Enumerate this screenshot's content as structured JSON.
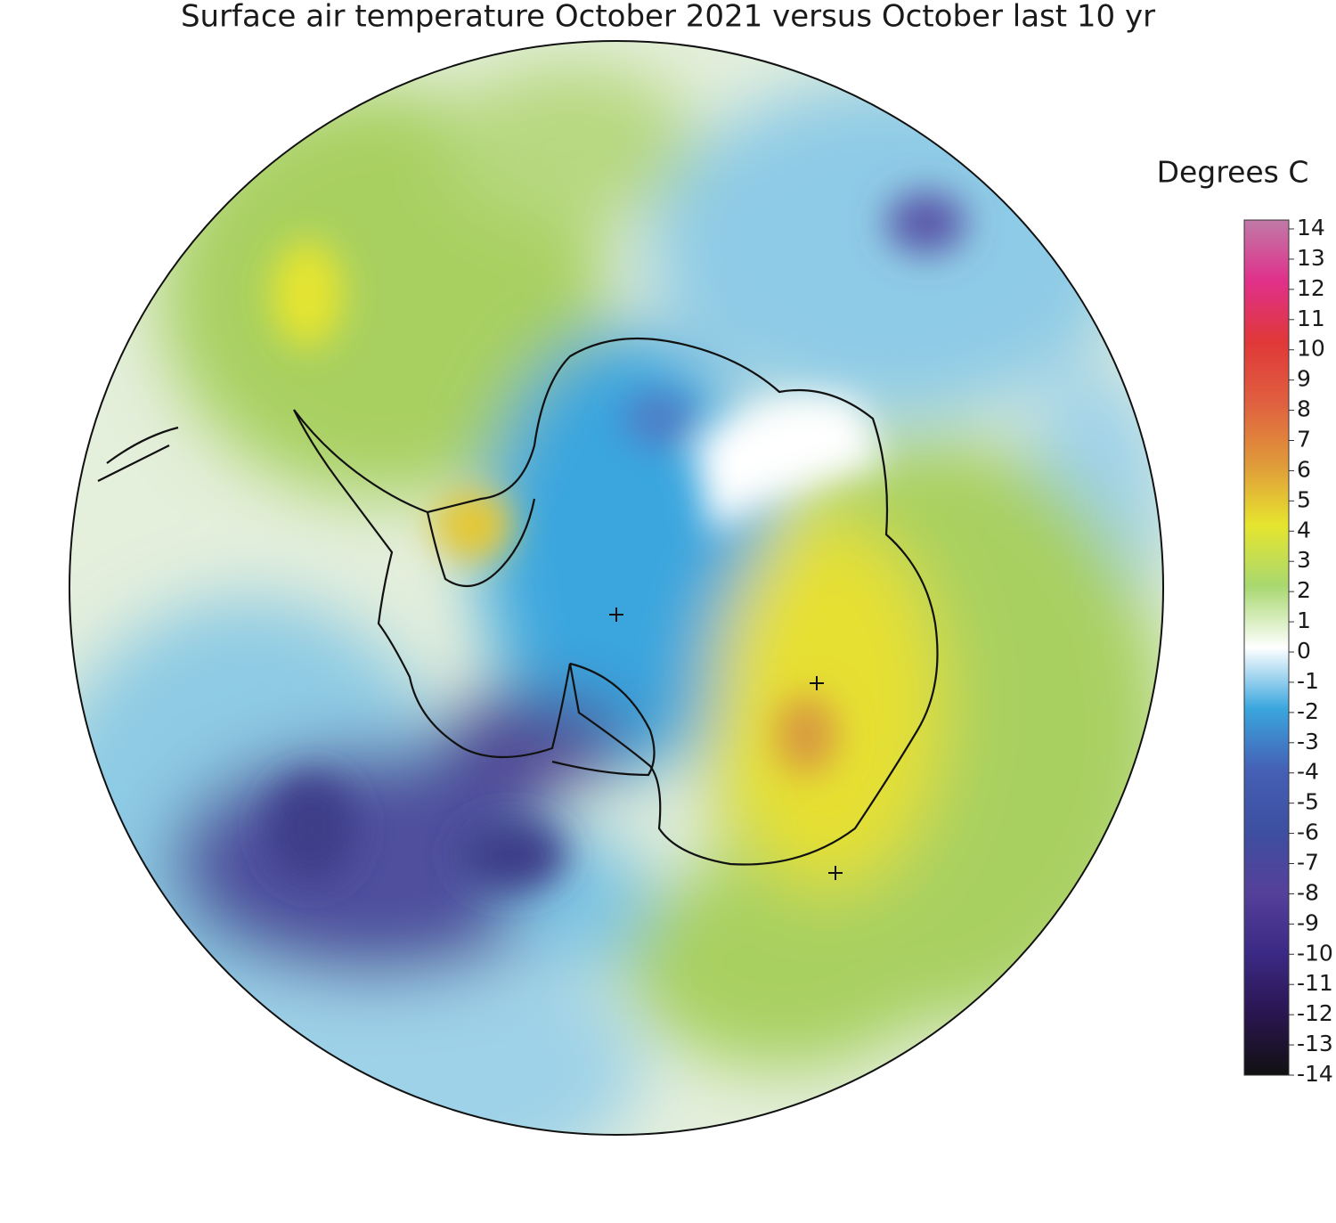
{
  "title": "Surface air temperature October 2021 versus October last 10 yr",
  "colorbar": {
    "label": "Degrees C",
    "range": [
      -14,
      14
    ],
    "ticks": [
      14,
      13,
      12,
      11,
      10,
      9,
      8,
      7,
      6,
      5,
      4,
      3,
      2,
      1,
      0,
      -1,
      -2,
      -3,
      -4,
      -5,
      -6,
      -7,
      -8,
      -9,
      -10,
      -11,
      -12,
      -13,
      -14
    ],
    "colors": [
      "#111111",
      "#2a1550",
      "#3b2a85",
      "#55409a",
      "#3d4fa0",
      "#4560b5",
      "#3aa6de",
      "#ffffff",
      "#a8d870",
      "#e6e52e",
      "#e09a3a",
      "#e06040",
      "#e03838",
      "#e0308a",
      "#c07aa8"
    ]
  }
}
